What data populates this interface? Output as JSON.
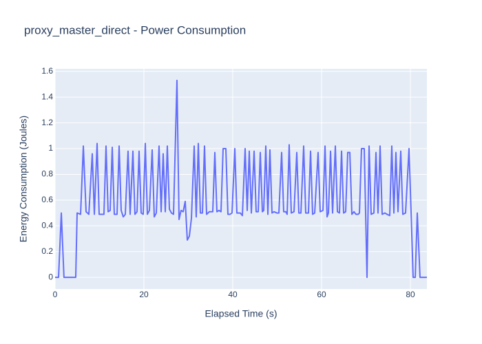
{
  "chart_data": {
    "type": "line",
    "title": "proxy_master_direct - Power Consumption",
    "x_label": "Elapsed Time (s)",
    "y_label": "Energy Consumption (Joules)",
    "xlim": [
      0,
      83.72
    ],
    "xticks": [
      0,
      20,
      40,
      60,
      80
    ],
    "ylim": [
      -0.09,
      1.62
    ],
    "yticks": [
      0,
      0.2,
      0.4,
      0.6,
      0.8,
      1,
      1.2,
      1.4,
      1.6
    ],
    "grid": true,
    "series": [
      {
        "name": "proxy_master_direct",
        "color": "#636efa",
        "x": [
          0,
          0.78,
          1.4,
          2.0,
          4.65,
          4.96,
          5.74,
          6.36,
          6.98,
          7.6,
          8.37,
          8.84,
          9.46,
          9.92,
          11.0,
          11.47,
          11.94,
          12.4,
          12.87,
          13.33,
          13.95,
          14.42,
          14.88,
          15.35,
          15.81,
          16.43,
          16.9,
          17.52,
          17.98,
          18.45,
          18.91,
          19.38,
          19.84,
          20.31,
          20.78,
          21.24,
          21.86,
          22.33,
          22.79,
          23.41,
          23.88,
          24.34,
          24.81,
          25.27,
          25.74,
          26.2,
          26.67,
          27.44,
          27.91,
          28.37,
          28.84,
          29.3,
          29.77,
          30.23,
          30.7,
          31.32,
          31.78,
          32.25,
          32.71,
          33.18,
          33.64,
          34.11,
          34.73,
          35.5,
          35.97,
          36.43,
          36.9,
          37.36,
          37.83,
          38.45,
          38.91,
          39.38,
          39.84,
          40.47,
          40.93,
          41.71,
          42.17,
          42.79,
          43.26,
          43.72,
          44.19,
          44.81,
          45.27,
          45.74,
          46.2,
          46.67,
          46.98,
          47.44,
          47.91,
          48.37,
          48.84,
          49.3,
          49.92,
          50.39,
          51.01,
          51.47,
          51.94,
          52.25,
          52.71,
          53.18,
          53.8,
          54.42,
          54.88,
          55.35,
          55.97,
          56.43,
          57.05,
          57.52,
          57.98,
          58.45,
          59.22,
          59.69,
          60.31,
          60.78,
          61.24,
          61.55,
          62.02,
          62.48,
          63.1,
          63.57,
          64.03,
          64.5,
          64.96,
          65.43,
          65.89,
          66.36,
          66.82,
          67.29,
          67.75,
          68.22,
          68.53,
          68.99,
          69.61,
          69.92,
          70.23,
          70.7,
          71.16,
          71.78,
          72.25,
          72.71,
          73.18,
          73.64,
          74.26,
          74.73,
          75.35,
          75.81,
          76.28,
          76.74,
          77.21,
          77.83,
          78.29,
          78.91,
          79.69,
          80.16,
          80.62,
          81.09,
          81.55,
          82.17,
          83.72
        ],
        "values": [
          0,
          0,
          0.5,
          0,
          0,
          0.5,
          0.49,
          1.02,
          0.51,
          0.49,
          0.96,
          0.49,
          1.04,
          0.49,
          0.49,
          1.02,
          0.51,
          0.52,
          1.01,
          0.49,
          0.49,
          1.02,
          0.52,
          0.47,
          0.49,
          0.98,
          0.49,
          0.98,
          0.49,
          0.51,
          0.98,
          0.5,
          0.49,
          1.04,
          0.49,
          0.52,
          0.99,
          0.47,
          0.5,
          1.02,
          0.51,
          0.96,
          0.51,
          1.02,
          0.53,
          0.5,
          0.49,
          1.53,
          0.45,
          0.52,
          0.51,
          0.59,
          0.29,
          0.32,
          0.46,
          1.02,
          0.47,
          1.04,
          0.5,
          0.5,
          1.02,
          0.49,
          0.51,
          0.51,
          0.97,
          0.51,
          0.52,
          0.51,
          1.0,
          1.0,
          0.49,
          0.49,
          0.5,
          1.0,
          0.5,
          0.5,
          0.48,
          1.0,
          0.52,
          0.98,
          0.5,
          0.98,
          0.51,
          0.51,
          0.97,
          0.51,
          0.52,
          1.02,
          0.49,
          0.99,
          0.5,
          0.51,
          0.5,
          0.5,
          0.97,
          0.51,
          0.51,
          0.49,
          1.03,
          0.5,
          0.51,
          0.97,
          0.5,
          0.5,
          1.02,
          0.5,
          0.5,
          0.98,
          0.49,
          0.5,
          0.97,
          0.51,
          0.52,
          1.02,
          0.47,
          0.5,
          0.98,
          0.5,
          1.02,
          0.51,
          0.5,
          0.98,
          0.5,
          0.51,
          0.97,
          0.97,
          0.49,
          0.51,
          0.49,
          0.49,
          0.5,
          1.0,
          1.0,
          0.5,
          0,
          1.02,
          0.49,
          0.5,
          0.97,
          0.5,
          1.02,
          0.49,
          0.5,
          0.49,
          0.48,
          1.02,
          0.5,
          0.97,
          0.51,
          0.98,
          0.49,
          0.5,
          1.0,
          0.5,
          0,
          0,
          0.5,
          0,
          0
        ]
      }
    ]
  }
}
